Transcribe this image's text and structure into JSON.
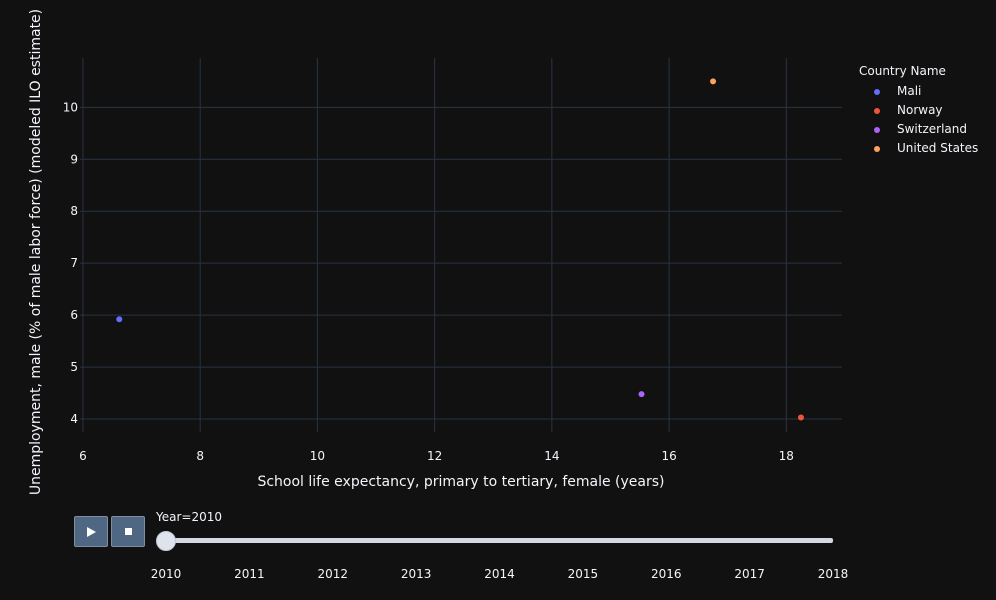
{
  "chart_data": {
    "type": "scatter",
    "xlabel": "School life expectancy, primary to tertiary, female (years)",
    "ylabel": "Unemployment, male (% of male labor force) (modeled ILO estimate)",
    "xlim": [
      5.95,
      18.95
    ],
    "ylim": [
      3.75,
      10.95
    ],
    "xticks": [
      6,
      8,
      10,
      12,
      14,
      16,
      18
    ],
    "yticks": [
      4,
      5,
      6,
      7,
      8,
      9,
      10
    ],
    "grid": true,
    "legend_position": "right",
    "series": [
      {
        "name": "Mali",
        "color": "#636efa",
        "points": [
          {
            "x": 6.62,
            "y": 5.92
          }
        ]
      },
      {
        "name": "Norway",
        "color": "#ef553b",
        "points": [
          {
            "x": 18.25,
            "y": 4.03
          }
        ]
      },
      {
        "name": "Switzerland",
        "color": "#ab63fa",
        "points": [
          {
            "x": 15.53,
            "y": 4.48
          }
        ]
      },
      {
        "name": "United States",
        "color": "#ffa15a",
        "points": [
          {
            "x": 16.75,
            "y": 10.5
          }
        ]
      }
    ]
  },
  "legend": {
    "title": "Country Name",
    "items": [
      "Mali",
      "Norway",
      "Switzerland",
      "United States"
    ]
  },
  "animation": {
    "current_label": "Year=2010",
    "current_value": 2010,
    "years": [
      "2010",
      "2011",
      "2012",
      "2013",
      "2014",
      "2015",
      "2016",
      "2017",
      "2018"
    ],
    "play_icon": "play-icon",
    "stop_icon": "stop-icon"
  },
  "colors": {
    "background": "#111111",
    "grid": "#283442",
    "text": "#f2f5fa",
    "button": "#506784"
  }
}
